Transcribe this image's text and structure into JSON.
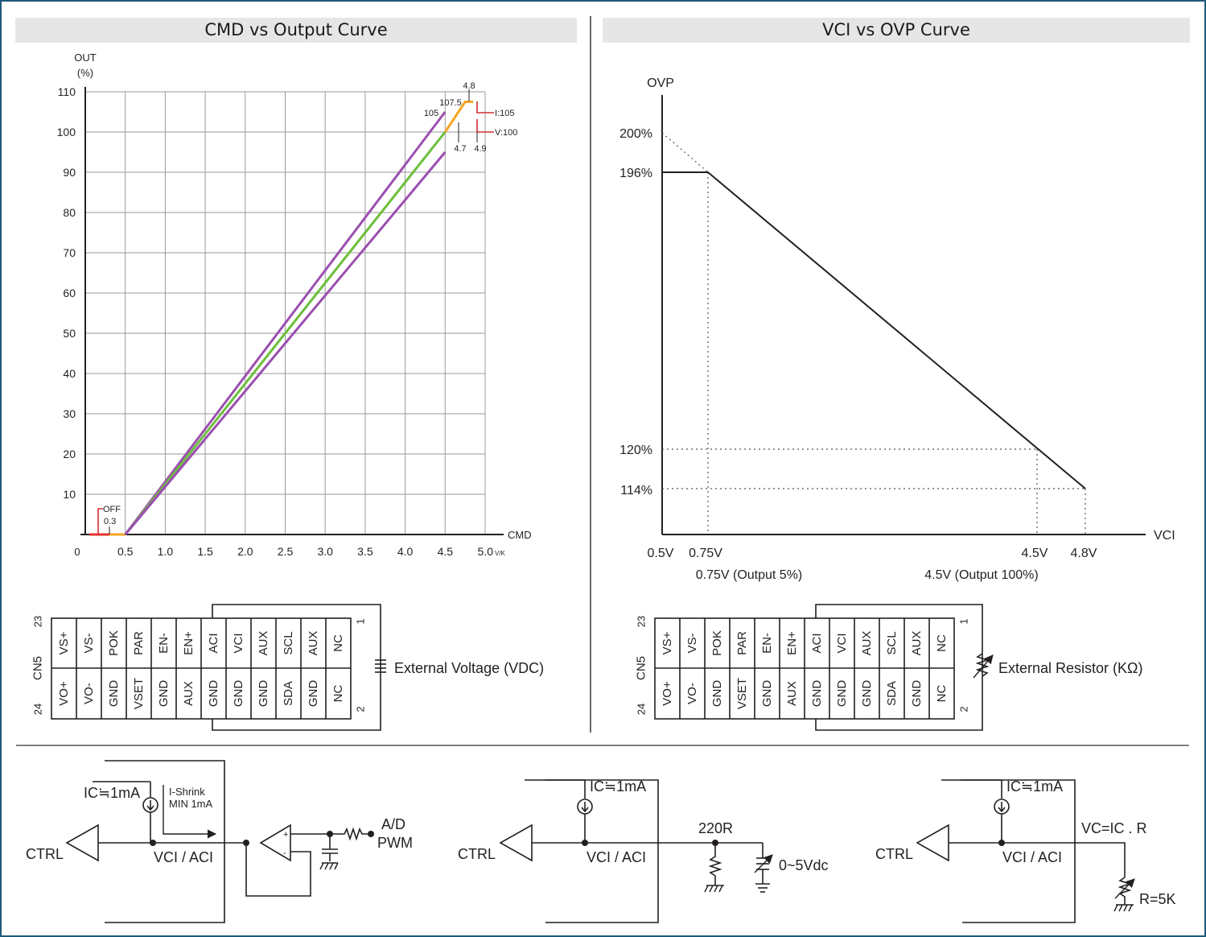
{
  "left_panel": {
    "title": "CMD vs Output Curve",
    "y_axis_label": [
      "OUT",
      "(%)"
    ],
    "x_axis_label": "CMD",
    "x_unit": "V/K",
    "origin_label": "0",
    "annotations": {
      "off": "OFF",
      "off_value": "0.3",
      "top_x": "4.8",
      "top_value": "107.5",
      "purple_end": "105",
      "left_tick": "4.7",
      "right_tick": "4.9",
      "i_limit": "I:105",
      "v_limit": "V:100"
    }
  },
  "right_panel": {
    "title": "VCI vs OVP Curve",
    "y_axis_label": "OVP",
    "x_axis_label": "VCI",
    "notes": [
      "0.75V (Output 5%)",
      "4.5V (Output 100%)"
    ]
  },
  "connector": {
    "name": "CN5",
    "top_row": [
      "VS+",
      "VS-",
      "POK",
      "PAR",
      "EN-",
      "EN+",
      "ACI",
      "VCI",
      "AUX",
      "SCL",
      "AUX",
      "NC"
    ],
    "bottom_row": [
      "VO+",
      "VO-",
      "GND",
      "VSET",
      "GND",
      "AUX",
      "GND",
      "GND",
      "GND",
      "SDA",
      "GND",
      "NC"
    ],
    "pin_23": "23",
    "pin_24": "24",
    "pin_1": "1",
    "pin_2": "2"
  },
  "left_connector_label": "External Voltage (VDC)",
  "right_connector_label": "External Resistor (KΩ)",
  "circuits": {
    "ic": "IC≒1mA",
    "ctrl": "CTRL",
    "node": "VCI / ACI",
    "shrink": [
      "I-Shrink",
      "MIN 1mA"
    ],
    "ad": [
      "A/D",
      "PWM"
    ],
    "res": "220R",
    "src": "0~5Vdc",
    "vc": "VC=IC . R",
    "r5k": "R=5K"
  },
  "chart_data": [
    {
      "type": "line",
      "title": "CMD vs Output Curve",
      "xlabel": "CMD",
      "ylabel": "OUT (%)",
      "x_ticks": [
        "0",
        "0.5",
        "1.0",
        "1.5",
        "2.0",
        "2.5",
        "3.0",
        "3.5",
        "4.0",
        "4.5",
        "5.0"
      ],
      "y_ticks": [
        "10",
        "20",
        "30",
        "40",
        "50",
        "60",
        "70",
        "80",
        "90",
        "100",
        "110"
      ],
      "xlim": [
        0,
        5.0
      ],
      "ylim": [
        0,
        110
      ],
      "grid": true,
      "series": [
        {
          "color": "#e3342f",
          "points": [
            [
              0.05,
              0
            ],
            [
              0.5,
              0
            ]
          ]
        },
        {
          "color": "#f6a623",
          "points": [
            [
              0.3,
              0
            ],
            [
              0.5,
              0
            ]
          ]
        },
        {
          "color": "#9b4fb0",
          "points": [
            [
              0.5,
              0
            ],
            [
              4.5,
              105
            ]
          ]
        },
        {
          "color": "#6cbf3b",
          "points": [
            [
              0.5,
              0
            ],
            [
              4.5,
              100
            ]
          ]
        },
        {
          "color": "#9b4fb0",
          "points": [
            [
              0.5,
              0
            ],
            [
              4.5,
              95
            ]
          ]
        },
        {
          "color": "#f6a623",
          "points": [
            [
              4.5,
              100
            ],
            [
              4.75,
              107.5
            ],
            [
              4.85,
              107.5
            ]
          ]
        }
      ]
    },
    {
      "type": "line",
      "title": "VCI vs OVP Curve",
      "xlabel": "VCI",
      "ylabel": "OVP",
      "x_ticks": [
        "0.5V",
        "0.75V",
        "4.5V",
        "4.8V"
      ],
      "y_ticks": [
        "114%",
        "120%",
        "196%",
        "200%"
      ],
      "grid": false,
      "series": [
        {
          "color": "#231f20",
          "points": [
            [
              "0.5V",
              "196%"
            ],
            [
              "0.75V",
              "196%"
            ],
            [
              "4.8V",
              "114%"
            ]
          ]
        }
      ],
      "extrapolation": {
        "points": [
          [
            "0.5V",
            "200%"
          ],
          [
            "0.75V",
            "196%"
          ]
        ]
      }
    }
  ]
}
